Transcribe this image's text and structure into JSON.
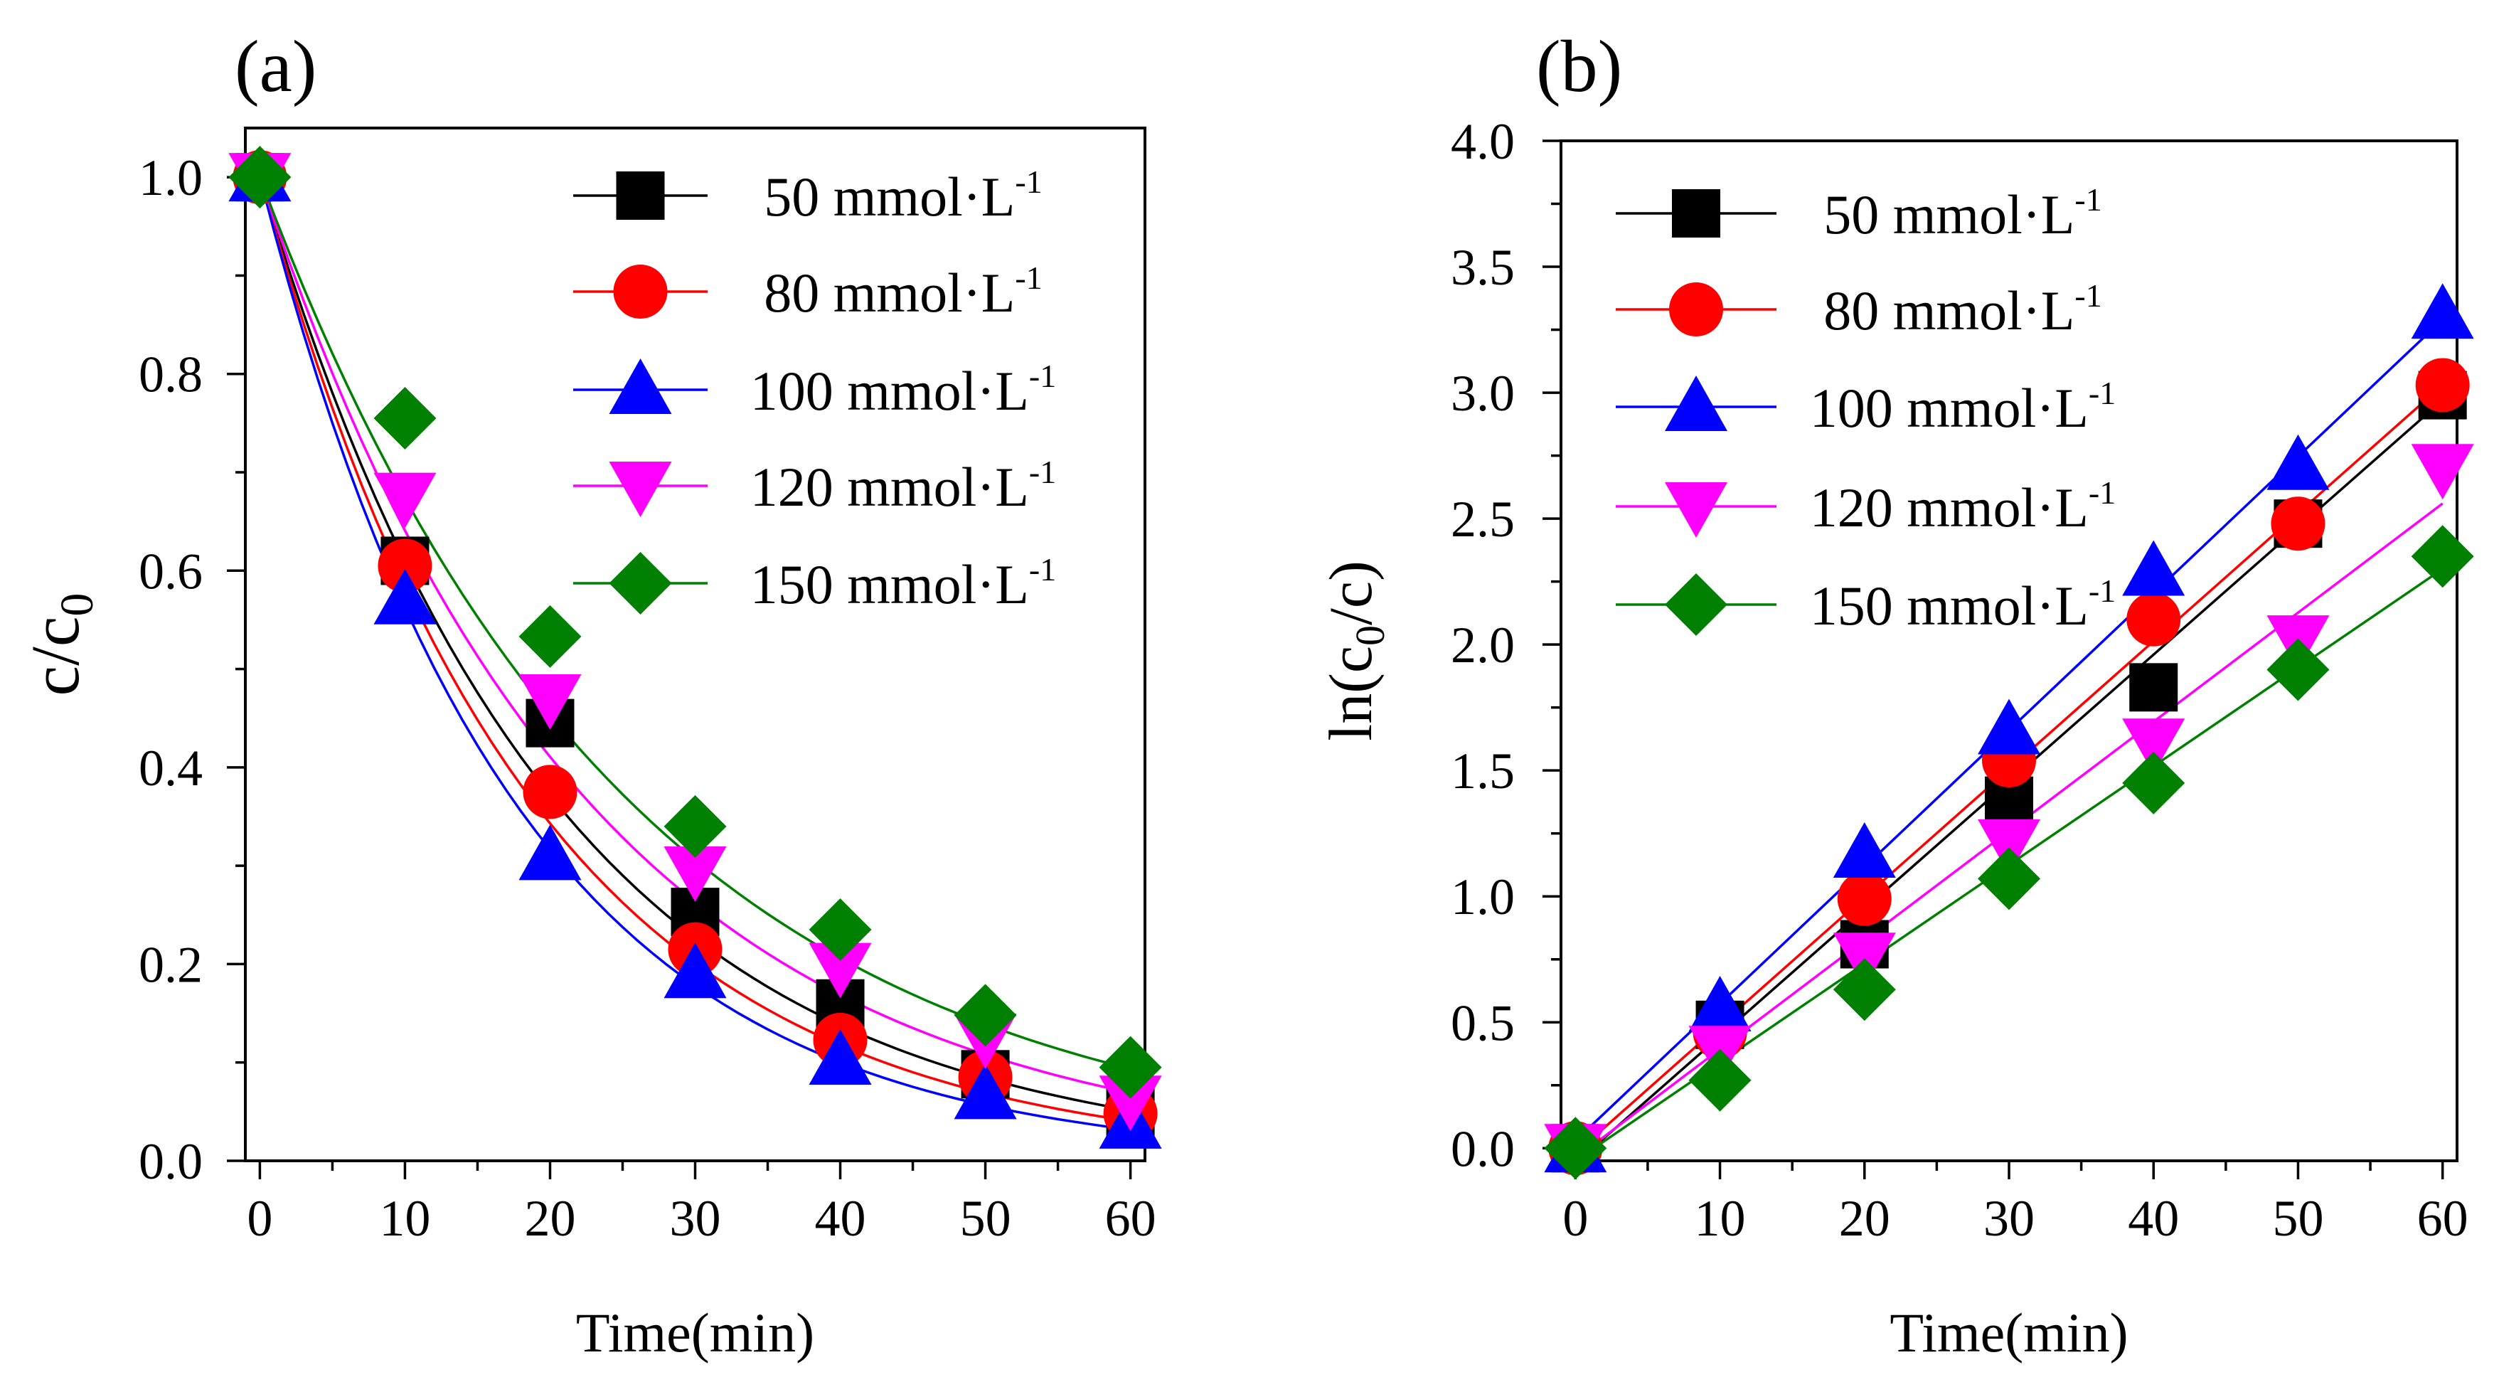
{
  "chart_data": [
    {
      "type": "line",
      "panel_label": "(a)",
      "xlabel": "Time(min)",
      "ylabel": "c/c0",
      "ylabel_main": "c/c",
      "ylabel_sub": "0",
      "xlim": [
        -1,
        61
      ],
      "ylim": [
        0,
        1.05
      ],
      "xticks": [
        0,
        10,
        20,
        30,
        40,
        50,
        60
      ],
      "xtick_labels": [
        "0",
        "10",
        "20",
        "30",
        "40",
        "50",
        "60"
      ],
      "yticks": [
        0.0,
        0.2,
        0.4,
        0.6,
        0.8,
        1.0
      ],
      "ytick_labels": [
        "0.0",
        "0.2",
        "0.4",
        "0.6",
        "0.8",
        "1.0"
      ],
      "grid": false,
      "legend_position": "top-right",
      "fit": "exponential decay",
      "x": [
        0,
        10,
        20,
        30,
        40,
        50,
        60
      ],
      "series": [
        {
          "name": "50 mmol·L-1",
          "label_main": "50 mmol·L",
          "label_sup": "-1",
          "color": "#000000",
          "marker": "square",
          "values": [
            1.0,
            0.61,
            0.445,
            0.253,
            0.16,
            0.088,
            0.05
          ],
          "fit_k": 0.0495
        },
        {
          "name": "80 mmol·L-1",
          "label_main": "80 mmol·L",
          "label_sup": "-1",
          "color": "#ff0000",
          "marker": "circle",
          "values": [
            1.0,
            0.605,
            0.375,
            0.215,
            0.123,
            0.085,
            0.048
          ],
          "fit_k": 0.0535
        },
        {
          "name": "100 mmol·L-1",
          "label_main": "100 mmol·L",
          "label_sup": "-1",
          "color": "#0000ff",
          "marker": "triangle-up",
          "values": [
            1.0,
            0.57,
            0.31,
            0.19,
            0.102,
            0.067,
            0.037
          ],
          "fit_k": 0.0575
        },
        {
          "name": "120 mmol·L-1",
          "label_main": "120 mmol·L",
          "label_sup": "-1",
          "color": "#ff00ff",
          "marker": "triangle-down",
          "values": [
            1.0,
            0.675,
            0.47,
            0.295,
            0.197,
            0.125,
            0.062
          ],
          "fit_k": 0.0445
        },
        {
          "name": "150 mmol·L-1",
          "label_main": "150 mmol·L",
          "label_sup": "-1",
          "color": "#008000",
          "marker": "diamond",
          "values": [
            1.0,
            0.755,
            0.533,
            0.34,
            0.235,
            0.148,
            0.095
          ],
          "fit_k": 0.0395
        }
      ]
    },
    {
      "type": "line",
      "panel_label": "(b)",
      "xlabel": "Time(min)",
      "ylabel": "ln(c0/c)",
      "ylabel_pre": "ln(c",
      "ylabel_sub": "0",
      "ylabel_post": "/c)",
      "xlim": [
        -1,
        61
      ],
      "ylim": [
        -0.05,
        4.0
      ],
      "xticks": [
        0,
        10,
        20,
        30,
        40,
        50,
        60
      ],
      "xtick_labels": [
        "0",
        "10",
        "20",
        "30",
        "40",
        "50",
        "60"
      ],
      "yticks": [
        0.0,
        0.5,
        1.0,
        1.5,
        2.0,
        2.5,
        3.0,
        3.5,
        4.0
      ],
      "ytick_labels": [
        "0.0",
        "0.5",
        "1.0",
        "1.5",
        "2.0",
        "2.5",
        "3.0",
        "3.5",
        "4.0"
      ],
      "grid": false,
      "legend_position": "top-left",
      "fit": "linear",
      "x": [
        0,
        10,
        20,
        30,
        40,
        50,
        60
      ],
      "series": [
        {
          "name": "50 mmol·L-1",
          "label_main": "50 mmol·L",
          "label_sup": "-1",
          "color": "#000000",
          "marker": "square",
          "values": [
            0.0,
            0.49,
            0.81,
            1.38,
            1.83,
            2.48,
            2.99
          ],
          "fit_line": [
            -0.06,
            2.97
          ]
        },
        {
          "name": "80 mmol·L-1",
          "label_main": "80 mmol·L",
          "label_sup": "-1",
          "color": "#ff0000",
          "marker": "circle",
          "values": [
            0.0,
            0.46,
            0.99,
            1.54,
            2.1,
            2.48,
            3.03
          ],
          "fit_line": [
            -0.02,
            3.03
          ]
        },
        {
          "name": "100 mmol·L-1",
          "label_main": "100 mmol·L",
          "label_sup": "-1",
          "color": "#0000ff",
          "marker": "triangle-up",
          "values": [
            0.0,
            0.56,
            1.17,
            1.66,
            2.29,
            2.71,
            3.31
          ],
          "fit_line": [
            0.03,
            3.29
          ]
        },
        {
          "name": "120 mmol·L-1",
          "label_main": "120 mmol·L",
          "label_sup": "-1",
          "color": "#ff00ff",
          "marker": "triangle-down",
          "values": [
            0.0,
            0.39,
            0.76,
            1.21,
            1.61,
            2.02,
            2.7
          ],
          "fit_line": [
            -0.04,
            2.56
          ]
        },
        {
          "name": "150 mmol·L-1",
          "label_main": "150 mmol·L",
          "label_sup": "-1",
          "color": "#008000",
          "marker": "diamond",
          "values": [
            0.0,
            0.27,
            0.63,
            1.07,
            1.45,
            1.9,
            2.35
          ],
          "fit_line": [
            -0.05,
            2.3
          ]
        }
      ]
    }
  ]
}
